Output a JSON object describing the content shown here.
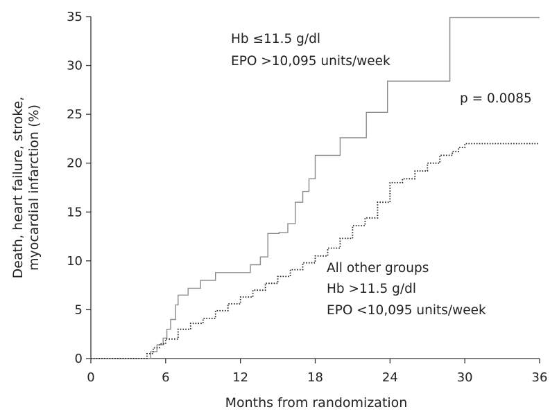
{
  "chart_data": {
    "type": "line",
    "title": "",
    "xlabel": "Months from randomization",
    "ylabel_lines": [
      "Death, heart failure, stroke,",
      "myocardial infarction (%)"
    ],
    "xlim": [
      0,
      36
    ],
    "ylim": [
      0,
      35
    ],
    "xticks": [
      0,
      6,
      12,
      18,
      24,
      30,
      36
    ],
    "yticks": [
      0,
      5,
      10,
      15,
      20,
      25,
      30,
      35
    ],
    "grid": false,
    "legend": "none",
    "series": [
      {
        "label_lines": [
          "Hb ≤11.5 g/dl",
          "EPO >10,095 units/week"
        ],
        "style": "solid step",
        "color": "#8a8a8a",
        "x": [
          0,
          4.3,
          4.8,
          5.3,
          5.8,
          6.1,
          6.4,
          6.8,
          7.0,
          7.8,
          8.8,
          10.0,
          11.0,
          12.8,
          13.6,
          14.2,
          15.1,
          15.8,
          16.4,
          17.0,
          17.5,
          18.0,
          18.4,
          20.0,
          22.1,
          23.8,
          26.0,
          28.8,
          36.0
        ],
        "y": [
          0,
          0.0,
          0.7,
          1.4,
          2.1,
          3.0,
          4.0,
          5.5,
          6.5,
          7.2,
          8.0,
          8.8,
          8.8,
          9.6,
          10.4,
          12.8,
          12.9,
          13.8,
          16.0,
          17.1,
          18.4,
          20.8,
          20.8,
          22.6,
          25.2,
          28.4,
          28.4,
          34.9,
          34.9
        ]
      },
      {
        "label_lines": [
          "All other groups",
          "Hb >11.5 g/dl",
          "EPO <10,095 units/week"
        ],
        "style": "dotted step",
        "color": "#222222",
        "x": [
          0,
          4.0,
          4.5,
          5.0,
          5.5,
          6.0,
          7.0,
          8.0,
          9.0,
          10.0,
          11.0,
          12.0,
          13.0,
          14.0,
          15.0,
          16.0,
          17.0,
          18.0,
          19.0,
          20.0,
          21.0,
          22.0,
          23.0,
          24.0,
          25.0,
          26.0,
          27.0,
          28.0,
          29.0,
          29.5,
          30.0,
          36.0
        ],
        "y": [
          0,
          0.0,
          0.5,
          1.1,
          1.5,
          2.0,
          3.0,
          3.6,
          4.1,
          4.9,
          5.6,
          6.3,
          7.0,
          7.7,
          8.4,
          9.1,
          9.8,
          10.5,
          11.3,
          12.3,
          13.6,
          14.4,
          16.0,
          18.0,
          18.4,
          19.2,
          20.0,
          20.8,
          21.2,
          21.6,
          22.0,
          22.0
        ]
      }
    ],
    "annotations": [
      {
        "text": "p = 0.0085"
      }
    ]
  }
}
